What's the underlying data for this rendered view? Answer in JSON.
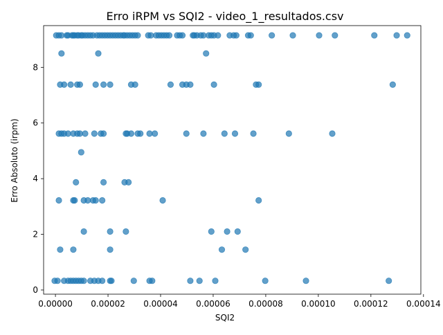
{
  "chart_data": {
    "type": "scatter",
    "title": "Erro iRPM vs SQI2 - video_1_resultados.csv",
    "xlabel": "SQI2",
    "ylabel": "Erro Absoluto (irpm)",
    "xlim": [
      -4.5e-06,
      0.000139
    ],
    "ylim": [
      -0.15,
      9.5
    ],
    "xticks": [
      0.0,
      2e-05,
      4e-05,
      6e-05,
      8e-05,
      0.0001,
      0.00012,
      0.00014
    ],
    "xtick_labels": [
      "0.00000",
      "0.00002",
      "0.00004",
      "0.00006",
      "0.00008",
      "0.00010",
      "0.00012",
      "0.00014"
    ],
    "yticks": [
      0,
      2,
      4,
      6,
      8
    ],
    "ytick_labels": [
      "0",
      "2",
      "4",
      "6",
      "8"
    ],
    "grid": false,
    "point_color": "#1f77b4",
    "point_opacity": 0.7,
    "points": [
      [
        3e-07,
        9.15
      ],
      [
        1.3e-06,
        9.15
      ],
      [
        2.3e-06,
        9.15
      ],
      [
        4.3e-06,
        9.15
      ],
      [
        4.8e-06,
        9.15
      ],
      [
        6.3e-06,
        9.15
      ],
      [
        6.8e-06,
        9.15
      ],
      [
        7.3e-06,
        9.15
      ],
      [
        8.3e-06,
        9.15
      ],
      [
        8.8e-06,
        9.15
      ],
      [
        9.8e-06,
        9.15
      ],
      [
        1.03e-05,
        9.15
      ],
      [
        1.13e-05,
        9.15
      ],
      [
        1.23e-05,
        9.15
      ],
      [
        1.33e-05,
        9.15
      ],
      [
        1.43e-05,
        9.15
      ],
      [
        1.58e-05,
        9.15
      ],
      [
        1.68e-05,
        9.15
      ],
      [
        1.78e-05,
        9.15
      ],
      [
        1.88e-05,
        9.15
      ],
      [
        1.98e-05,
        9.15
      ],
      [
        2.08e-05,
        9.15
      ],
      [
        2.18e-05,
        9.15
      ],
      [
        2.28e-05,
        9.15
      ],
      [
        2.38e-05,
        9.15
      ],
      [
        2.48e-05,
        9.15
      ],
      [
        2.58e-05,
        9.15
      ],
      [
        2.63e-05,
        9.15
      ],
      [
        2.73e-05,
        9.15
      ],
      [
        2.83e-05,
        9.15
      ],
      [
        2.93e-05,
        9.15
      ],
      [
        3.03e-05,
        9.15
      ],
      [
        3.13e-05,
        9.15
      ],
      [
        3.53e-05,
        9.15
      ],
      [
        3.63e-05,
        9.15
      ],
      [
        3.83e-05,
        9.15
      ],
      [
        3.93e-05,
        9.15
      ],
      [
        4.03e-05,
        9.15
      ],
      [
        4.13e-05,
        9.15
      ],
      [
        4.23e-05,
        9.15
      ],
      [
        4.33e-05,
        9.15
      ],
      [
        4.63e-05,
        9.15
      ],
      [
        4.73e-05,
        9.15
      ],
      [
        4.83e-05,
        9.15
      ],
      [
        5.23e-05,
        9.15
      ],
      [
        5.28e-05,
        9.15
      ],
      [
        5.38e-05,
        9.15
      ],
      [
        5.53e-05,
        9.15
      ],
      [
        5.63e-05,
        9.15
      ],
      [
        5.83e-05,
        9.15
      ],
      [
        5.93e-05,
        9.15
      ],
      [
        6.03e-05,
        9.15
      ],
      [
        6.18e-05,
        9.15
      ],
      [
        6.63e-05,
        9.15
      ],
      [
        6.78e-05,
        9.15
      ],
      [
        6.88e-05,
        9.15
      ],
      [
        7.33e-05,
        9.15
      ],
      [
        7.43e-05,
        9.15
      ],
      [
        8.23e-05,
        9.15
      ],
      [
        9.03e-05,
        9.15
      ],
      [
        0.0001003,
        9.15
      ],
      [
        0.0001063,
        9.15
      ],
      [
        0.0001213,
        9.15
      ],
      [
        0.0001298,
        9.15
      ],
      [
        0.0001338,
        9.15
      ],
      [
        2.3e-06,
        8.5
      ],
      [
        1.63e-05,
        8.5
      ],
      [
        5.73e-05,
        8.5
      ],
      [
        1.8e-06,
        7.38
      ],
      [
        3.3e-06,
        7.38
      ],
      [
        5.8e-06,
        7.38
      ],
      [
        8.3e-06,
        7.38
      ],
      [
        9.3e-06,
        7.38
      ],
      [
        1.53e-05,
        7.38
      ],
      [
        1.83e-05,
        7.38
      ],
      [
        2.08e-05,
        7.38
      ],
      [
        2.88e-05,
        7.38
      ],
      [
        3.03e-05,
        7.38
      ],
      [
        4.38e-05,
        7.38
      ],
      [
        4.83e-05,
        7.38
      ],
      [
        4.98e-05,
        7.38
      ],
      [
        5.13e-05,
        7.38
      ],
      [
        6.03e-05,
        7.38
      ],
      [
        7.63e-05,
        7.38
      ],
      [
        7.73e-05,
        7.38
      ],
      [
        0.0001283,
        7.38
      ],
      [
        1.3e-06,
        5.62
      ],
      [
        2.3e-06,
        5.62
      ],
      [
        3.3e-06,
        5.62
      ],
      [
        4.8e-06,
        5.62
      ],
      [
        6.8e-06,
        5.62
      ],
      [
        8.3e-06,
        5.62
      ],
      [
        9.3e-06,
        5.62
      ],
      [
        1.13e-05,
        5.62
      ],
      [
        1.48e-05,
        5.62
      ],
      [
        1.73e-05,
        5.62
      ],
      [
        1.83e-05,
        5.62
      ],
      [
        2.68e-05,
        5.62
      ],
      [
        2.73e-05,
        5.62
      ],
      [
        2.88e-05,
        5.62
      ],
      [
        3.13e-05,
        5.62
      ],
      [
        3.23e-05,
        5.62
      ],
      [
        3.58e-05,
        5.62
      ],
      [
        3.78e-05,
        5.62
      ],
      [
        4.98e-05,
        5.62
      ],
      [
        5.63e-05,
        5.62
      ],
      [
        6.43e-05,
        5.62
      ],
      [
        6.83e-05,
        5.62
      ],
      [
        7.53e-05,
        5.62
      ],
      [
        8.88e-05,
        5.62
      ],
      [
        0.0001053,
        5.62
      ],
      [
        9.8e-06,
        4.95
      ],
      [
        7.8e-06,
        3.87
      ],
      [
        1.83e-05,
        3.87
      ],
      [
        2.63e-05,
        3.87
      ],
      [
        2.78e-05,
        3.87
      ],
      [
        1.3e-06,
        3.22
      ],
      [
        6.8e-06,
        3.22
      ],
      [
        7.3e-06,
        3.22
      ],
      [
        1.08e-05,
        3.22
      ],
      [
        1.23e-05,
        3.22
      ],
      [
        1.43e-05,
        3.22
      ],
      [
        1.53e-05,
        3.22
      ],
      [
        1.78e-05,
        3.22
      ],
      [
        4.08e-05,
        3.22
      ],
      [
        7.73e-05,
        3.22
      ],
      [
        1.08e-05,
        2.1
      ],
      [
        2.08e-05,
        2.1
      ],
      [
        2.68e-05,
        2.1
      ],
      [
        5.93e-05,
        2.1
      ],
      [
        6.53e-05,
        2.1
      ],
      [
        6.93e-05,
        2.1
      ],
      [
        1.8e-06,
        1.45
      ],
      [
        6.8e-06,
        1.45
      ],
      [
        2.08e-05,
        1.45
      ],
      [
        6.33e-05,
        1.45
      ],
      [
        7.23e-05,
        1.45
      ],
      [
        -3e-07,
        0.33
      ],
      [
        8e-07,
        0.33
      ],
      [
        3.3e-06,
        0.33
      ],
      [
        4.8e-06,
        0.33
      ],
      [
        5.8e-06,
        0.33
      ],
      [
        6.8e-06,
        0.33
      ],
      [
        7.8e-06,
        0.33
      ],
      [
        8.8e-06,
        0.33
      ],
      [
        9.8e-06,
        0.33
      ],
      [
        1.08e-05,
        0.33
      ],
      [
        1.33e-05,
        0.33
      ],
      [
        1.48e-05,
        0.33
      ],
      [
        1.63e-05,
        0.33
      ],
      [
        1.78e-05,
        0.33
      ],
      [
        2.08e-05,
        0.33
      ],
      [
        2.13e-05,
        0.33
      ],
      [
        2.98e-05,
        0.33
      ],
      [
        3.58e-05,
        0.33
      ],
      [
        3.68e-05,
        0.33
      ],
      [
        5.13e-05,
        0.33
      ],
      [
        5.48e-05,
        0.33
      ],
      [
        6.08e-05,
        0.33
      ],
      [
        7.98e-05,
        0.33
      ],
      [
        9.53e-05,
        0.33
      ],
      [
        0.0001268,
        0.33
      ]
    ]
  }
}
